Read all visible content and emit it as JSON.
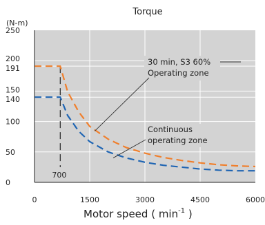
{
  "chart_data": {
    "type": "line",
    "title": "Torque",
    "ylabel": "(N-m)",
    "xlabel_main": "Motor speed ( min",
    "xlabel_sup": "-1",
    "xlabel_end": " )",
    "xlim": [
      0,
      6000
    ],
    "ylim": [
      0,
      250
    ],
    "xticks": [
      "0",
      "1500",
      "3000",
      "4500",
      "6000"
    ],
    "xtick_values": [
      0,
      1500,
      3000,
      4500,
      6000
    ],
    "yticks": [
      "0",
      "50",
      "100",
      "140",
      "150",
      "191",
      "200",
      "250"
    ],
    "ytick_values": [
      0,
      50,
      100,
      140,
      150,
      191,
      200,
      250
    ],
    "grid": true,
    "series": [
      {
        "name": "30 min, S3 60% Operating zone",
        "color": "#f07f2c",
        "x": [
          0,
          700,
          900,
          1200,
          1500,
          2000,
          2500,
          3000,
          3500,
          4000,
          4500,
          5000,
          5500,
          6000
        ],
        "y": [
          191,
          191,
          149,
          116,
          92,
          71,
          57,
          48,
          41,
          36,
          32,
          29,
          27,
          26
        ]
      },
      {
        "name": "Continuous operating zone",
        "color": "#1f65b3",
        "x": [
          0,
          700,
          900,
          1200,
          1500,
          2000,
          2500,
          3000,
          3500,
          4000,
          4500,
          5000,
          5500,
          6000
        ],
        "y": [
          140,
          140,
          110,
          84,
          67,
          50,
          40,
          33,
          28,
          25,
          22,
          20,
          19,
          19
        ]
      }
    ],
    "marker": {
      "x": 700,
      "label": "700"
    },
    "annotations": [
      {
        "lines": [
          "30 min, S3 60%",
          "Operating zone"
        ],
        "series": 0
      },
      {
        "lines": [
          "Continuous",
          "operating zone"
        ],
        "series": 1
      }
    ]
  }
}
